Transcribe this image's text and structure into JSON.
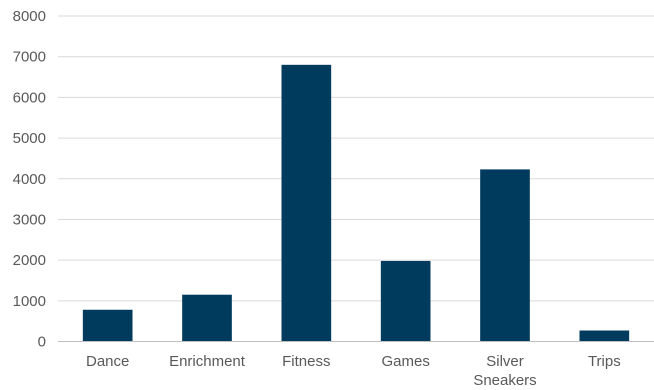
{
  "chart_data": {
    "type": "bar",
    "categories": [
      "Dance",
      "Enrichment",
      "Fitness",
      "Games",
      "Silver Sneakers",
      "Trips"
    ],
    "category_lines": [
      [
        "Dance"
      ],
      [
        "Enrichment"
      ],
      [
        "Fitness"
      ],
      [
        "Games"
      ],
      [
        "Silver",
        "Sneakers"
      ],
      [
        "Trips"
      ]
    ],
    "values": [
      780,
      1150,
      6800,
      1980,
      4230,
      270
    ],
    "yticks": [
      "0",
      "1000",
      "2000",
      "3000",
      "4000",
      "5000",
      "6000",
      "7000",
      "8000"
    ],
    "ylim": [
      0,
      8000
    ],
    "grid": true,
    "legend": "none",
    "bar_color": "#003a5d"
  }
}
